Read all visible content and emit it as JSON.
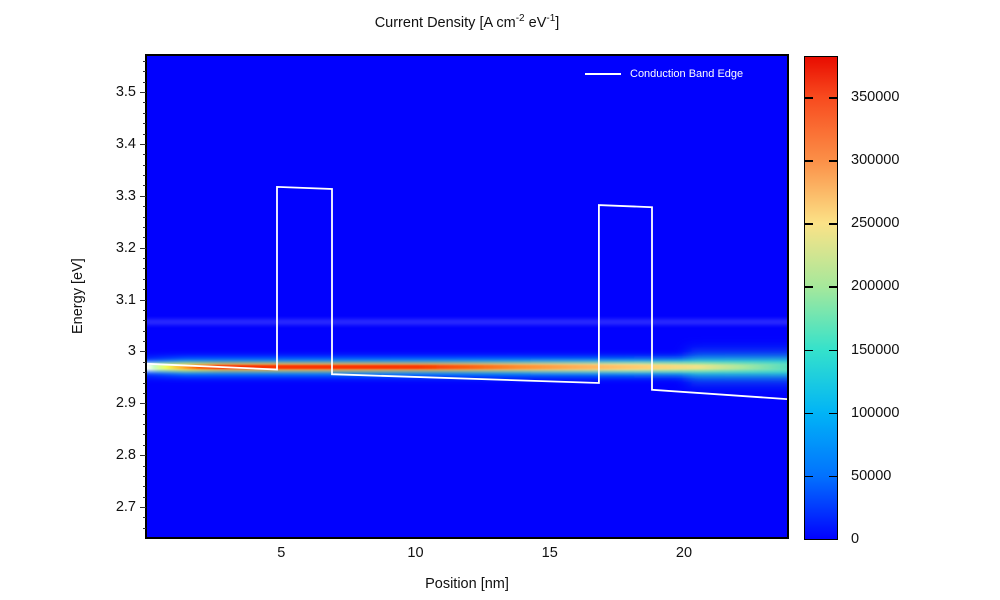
{
  "title": {
    "pre": "Current Density [A cm",
    "sup1": "-2",
    "mid": " eV",
    "sup2": "-1",
    "post": "]"
  },
  "legend": {
    "label": "Conduction Band Edge"
  },
  "x_axis": {
    "label": "Position [nm]",
    "ticks": [
      {
        "label": "5",
        "value": 5
      },
      {
        "label": "10",
        "value": 10
      },
      {
        "label": "15",
        "value": 15
      },
      {
        "label": "20",
        "value": 20
      }
    ]
  },
  "y_axis": {
    "label": "Energy [eV]",
    "minor_step": 0.02,
    "ticks": [
      {
        "label": "3.5",
        "value": 3.5
      },
      {
        "label": "3.4",
        "value": 3.4
      },
      {
        "label": "3.3",
        "value": 3.3
      },
      {
        "label": "3.2",
        "value": 3.2
      },
      {
        "label": "3.1",
        "value": 3.1
      },
      {
        "label": "3",
        "value": 3.0
      },
      {
        "label": "2.9",
        "value": 2.9
      },
      {
        "label": "2.8",
        "value": 2.8
      },
      {
        "label": "2.7",
        "value": 2.7
      }
    ]
  },
  "colorbar": {
    "colormap": "jet",
    "max_value": 381700,
    "ticks": [
      {
        "label": "350000",
        "value": 350000
      },
      {
        "label": "300000",
        "value": 300000
      },
      {
        "label": "250000",
        "value": 250000
      },
      {
        "label": "200000",
        "value": 200000
      },
      {
        "label": "150000",
        "value": 150000
      },
      {
        "label": "100000",
        "value": 100000
      },
      {
        "label": "50000",
        "value": 50000
      },
      {
        "label": "0",
        "value": 0
      }
    ]
  },
  "chart_data": {
    "type": "heatmap",
    "title": "Current Density [A cm-2 eV-1]",
    "xlabel": "Position [nm]",
    "ylabel": "Energy [eV]",
    "xlim": [
      0,
      23.8
    ],
    "ylim": [
      2.64,
      3.57
    ],
    "x_ticks": [
      5,
      10,
      15,
      20
    ],
    "y_ticks": [
      3.5,
      3.4,
      3.3,
      3.2,
      3.1,
      3.0,
      2.9,
      2.8,
      2.7
    ],
    "colorbar_ticks": [
      0,
      50000,
      100000,
      150000,
      200000,
      250000,
      300000,
      350000
    ],
    "colorbar_range": [
      0,
      381700
    ],
    "background_value": 0,
    "background_color": "#0101fe",
    "legend_position": "top-right inside plot",
    "features": [
      {
        "name": "resonant-current-streak",
        "energy_eV": 2.97,
        "extent_nm": [
          0,
          23.8
        ],
        "peak_value": 380000,
        "peak_extent_nm": [
          3,
          16.5
        ],
        "description": "Narrow horizontal band of high current density: rises from near 0 at the left contact to maximum (red, ~380000) by ~3 nm, stays saturated red to ~16 nm, then decays through orange (~18-20 nm) and yellow to cyan-green (~150000) while broadening toward the right edge."
      },
      {
        "name": "faint-secondary-resonance",
        "energy_eV": 3.06,
        "extent_nm": [
          0,
          23.8
        ],
        "approx_value": 15000,
        "description": "Very faint lighter-blue horizontal band spanning the full width."
      }
    ],
    "overlay": {
      "name": "Conduction Band Edge",
      "color": "#ffffff",
      "points_nm_eV": [
        [
          0,
          2.976
        ],
        [
          4.84,
          2.965
        ],
        [
          4.84,
          3.317
        ],
        [
          6.89,
          3.313
        ],
        [
          6.89,
          2.956
        ],
        [
          16.83,
          2.939
        ],
        [
          16.83,
          3.282
        ],
        [
          18.81,
          3.278
        ],
        [
          18.81,
          2.926
        ],
        [
          23.84,
          2.908
        ]
      ]
    }
  }
}
